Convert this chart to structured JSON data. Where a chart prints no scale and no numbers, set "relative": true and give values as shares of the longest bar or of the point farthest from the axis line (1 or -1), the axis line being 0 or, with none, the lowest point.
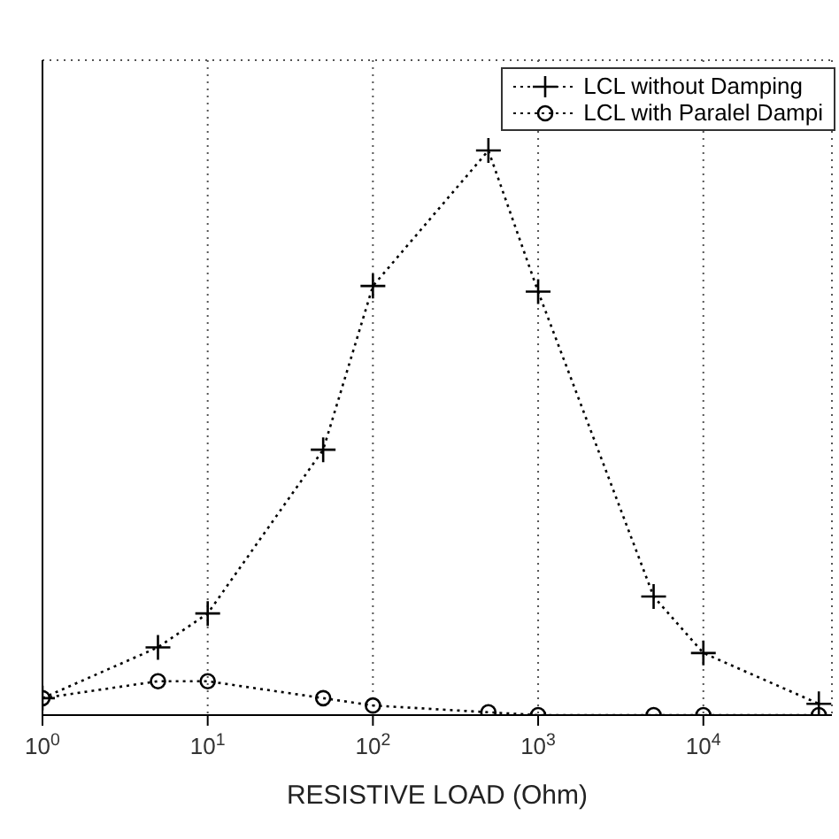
{
  "chart_data": {
    "type": "line",
    "xlabel": "RESISTIVE LOAD (Ohm)",
    "x": [
      1,
      5,
      10,
      50,
      100,
      500,
      1000,
      5000,
      10000,
      50000
    ],
    "log": "x",
    "xlim": [
      1,
      60000
    ],
    "xticks": [
      {
        "value": 1,
        "label": "10$^{0}$"
      },
      {
        "value": 10,
        "label": "10$^{1}$"
      },
      {
        "value": 100,
        "label": "10$^{2}$"
      },
      {
        "value": 1000,
        "label": "10$^{3}$"
      },
      {
        "value": 10000,
        "label": "10$^{4}$"
      }
    ],
    "relative": true,
    "tick_labels": "x",
    "grid": true,
    "legend": "top right",
    "line_style": "dotted",
    "series": [
      {
        "name": "LCL without Damping",
        "color": "#000000",
        "marker": "cross",
        "values": [
          0.03,
          0.12,
          0.18,
          0.47,
          0.76,
          1,
          0.75,
          0.21,
          0.11,
          0.02
        ]
      },
      {
        "name": "LCL with Paralel Dampi",
        "color": "#000000",
        "marker": "circle",
        "values": [
          0.03,
          0.06,
          0.06,
          0.03,
          0.017,
          0.005,
          0,
          0,
          0,
          0
        ]
      }
    ]
  }
}
